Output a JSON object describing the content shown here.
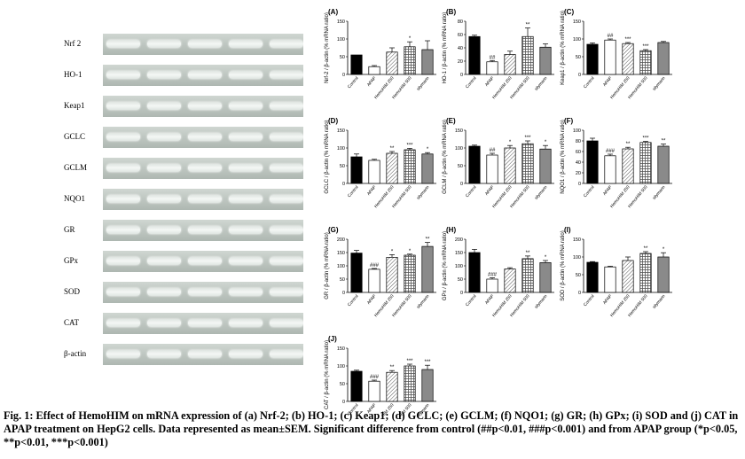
{
  "gel": {
    "labels": [
      "Nrf 2",
      "HO-1",
      "Keap1",
      "GCLC",
      "GCLM",
      "NQO1",
      "GR",
      "GPx",
      "SOD",
      "CAT",
      "β-actin"
    ]
  },
  "caption": "Fig. 1: Effect of HemoHIM on mRNA expression of (a) Nrf-2; (b) HO-1; (c) Keap1; (d) GCLC; (e) GCLM; (f) NQO1; (g) GR; (h) GPx; (i) SOD and (j) CAT in APAP treatment on HepG2 cells. Data represented as mean±SEM. Significant difference from control (##p<0.01, ###p<0.001) and from APAP group (*p<0.05, **p<0.01, ***p<0.001)",
  "chart_data": [
    {
      "panel": "(A)",
      "type": "bar",
      "ylabel": "Nrf-2 / β-actin (% mRNA ratio)",
      "ylim": [
        0,
        150
      ],
      "ticks": [
        0,
        50,
        100,
        150
      ],
      "categories": [
        "Control",
        "APAP",
        "HemoHIM 250",
        "HemoHIM 500",
        "silymarin"
      ],
      "values": [
        55,
        22,
        63,
        78,
        70
      ],
      "errors": [
        0,
        3,
        12,
        14,
        25
      ],
      "marks": [
        "",
        "",
        "",
        "*",
        ""
      ]
    },
    {
      "panel": "(B)",
      "type": "bar",
      "ylabel": "HO-1 / β-actin (% mRNA ratio)",
      "ylim": [
        0,
        80
      ],
      "ticks": [
        0,
        20,
        40,
        60,
        80
      ],
      "categories": [
        "Control",
        "APAP",
        "HemoHIM 250",
        "HemoHIM 500",
        "silymarin"
      ],
      "values": [
        57,
        19,
        30,
        57,
        41
      ],
      "errors": [
        2,
        2,
        5,
        13,
        5
      ],
      "marks": [
        "",
        "##",
        "",
        "**",
        ""
      ]
    },
    {
      "panel": "(C)",
      "type": "bar",
      "ylabel": "Keap1 / β-actin (% mRNA ratio)",
      "ylim": [
        0,
        150
      ],
      "ticks": [
        0,
        50,
        100,
        150
      ],
      "categories": [
        "Control",
        "APAP",
        "HemoHIM 250",
        "HemoHIM 500",
        "silymarin"
      ],
      "values": [
        85,
        97,
        87,
        67,
        90
      ],
      "errors": [
        4,
        3,
        3,
        3,
        3
      ],
      "marks": [
        "",
        "##",
        "***",
        "***",
        ""
      ]
    },
    {
      "panel": "(D)",
      "type": "bar",
      "ylabel": "GCLC / β-actin (% mRNA ratio)",
      "ylim": [
        0,
        150
      ],
      "ticks": [
        0,
        50,
        100,
        150
      ],
      "categories": [
        "Control",
        "APAP",
        "HemoHIM 250",
        "HemoHIM 500",
        "silymarin"
      ],
      "values": [
        75,
        65,
        85,
        95,
        83
      ],
      "errors": [
        8,
        3,
        5,
        4,
        4
      ],
      "marks": [
        "",
        "",
        "**",
        "***",
        "*"
      ]
    },
    {
      "panel": "(E)",
      "type": "bar",
      "ylabel": "GCLM / β-actin (% mRNA ratio)",
      "ylim": [
        0,
        150
      ],
      "ticks": [
        0,
        50,
        100,
        150
      ],
      "categories": [
        "Control",
        "APAP",
        "HemoHIM 250",
        "HemoHIM 500",
        "silymarin"
      ],
      "values": [
        105,
        80,
        100,
        112,
        97
      ],
      "errors": [
        3,
        5,
        7,
        8,
        10
      ],
      "marks": [
        "",
        "##",
        "*",
        "***",
        "*"
      ]
    },
    {
      "panel": "(F)",
      "type": "bar",
      "ylabel": "NQO1 / β-actin (% mRNA ratio)",
      "ylim": [
        0,
        100
      ],
      "ticks": [
        0,
        20,
        40,
        60,
        80,
        100
      ],
      "categories": [
        "Control",
        "APAP",
        "HemoHIM 250",
        "HemoHIM 500",
        "silymarin"
      ],
      "values": [
        80,
        52,
        65,
        77,
        70
      ],
      "errors": [
        5,
        3,
        3,
        2,
        4
      ],
      "marks": [
        "",
        "###",
        "**",
        "***",
        "**"
      ]
    },
    {
      "panel": "(G)",
      "type": "bar",
      "ylabel": "GR / β-actin (% mRNA ratio)",
      "ylim": [
        0,
        200
      ],
      "ticks": [
        0,
        50,
        100,
        150,
        200
      ],
      "categories": [
        "Control",
        "APAP",
        "HemoHIM 250",
        "HemoHIM 500",
        "silymarin"
      ],
      "values": [
        148,
        87,
        132,
        140,
        173
      ],
      "errors": [
        10,
        3,
        10,
        4,
        15
      ],
      "marks": [
        "",
        "###",
        "*",
        "*",
        "**"
      ]
    },
    {
      "panel": "(H)",
      "type": "bar",
      "ylabel": "GPx / β-actin (% mRNA ratio)",
      "ylim": [
        0,
        200
      ],
      "ticks": [
        0,
        50,
        100,
        150,
        200
      ],
      "categories": [
        "Control",
        "APAP",
        "HemoHIM 250",
        "HemoHIM 500",
        "silymarin"
      ],
      "values": [
        150,
        50,
        88,
        127,
        112
      ],
      "errors": [
        12,
        5,
        5,
        10,
        8
      ],
      "marks": [
        "",
        "###",
        "",
        "**",
        "*"
      ]
    },
    {
      "panel": "(I)",
      "type": "bar",
      "ylabel": "SOD / β-actin (% mRNA ratio)",
      "ylim": [
        0,
        150
      ],
      "ticks": [
        0,
        50,
        100,
        150
      ],
      "categories": [
        "Control",
        "APAP",
        "HemoHIM 250",
        "HemoHIM 500",
        "silymarin"
      ],
      "values": [
        85,
        72,
        90,
        110,
        100
      ],
      "errors": [
        2,
        2,
        10,
        5,
        12
      ],
      "marks": [
        "",
        "",
        "",
        "**",
        "*"
      ]
    },
    {
      "panel": "(J)",
      "type": "bar",
      "ylabel": "CAT / β-actin (% mRNA ratio)",
      "ylim": [
        0,
        150
      ],
      "ticks": [
        0,
        50,
        100,
        150
      ],
      "categories": [
        "Control",
        "APAP",
        "HemoHIM 250",
        "HemoHIM 500",
        "silymarin"
      ],
      "values": [
        85,
        57,
        82,
        100,
        90
      ],
      "errors": [
        3,
        3,
        5,
        5,
        12
      ],
      "marks": [
        "",
        "###",
        "**",
        "***",
        "***"
      ]
    }
  ]
}
